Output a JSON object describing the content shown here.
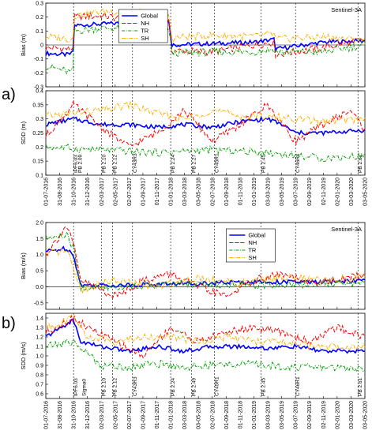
{
  "figure": {
    "panel_labels": [
      "a)",
      "b)"
    ],
    "dates": [
      "01-07-2016",
      "31-08-2016",
      "31-10-2016",
      "31-12-2016",
      "02-03-2017",
      "02-05-2017",
      "02-07-2017",
      "01-09-2017",
      "01-11-2017",
      "01-01-2018",
      "03-03-2018",
      "03-05-2018",
      "02-07-2018",
      "01-09-2018",
      "01-11-2018",
      "01-01-2019",
      "03-03-2019",
      "03-05-2019",
      "03-07-2019",
      "02-09-2019",
      "02-11-2019",
      "02-01-2020",
      "03-03-2020",
      "03-05-2020"
    ],
    "x_range": [
      "2016-07-01",
      "2020-05-03"
    ],
    "legend_entries": [
      "Global",
      "NH",
      "TR",
      "SH"
    ],
    "mission": "Sentinel-3A",
    "colors": {
      "Global": "#0000ff",
      "NH": "#ff0000",
      "TR": "#00a000",
      "SH": "#ffb000"
    }
  },
  "chart_data": [
    {
      "type": "line",
      "ylabel": "Bias (m)",
      "ylim": [
        -0.3,
        0.3
      ],
      "yticks": [
        "-0.3",
        "-0.2",
        "-0.1",
        "0",
        "0.1",
        "0.2",
        "0.3"
      ],
      "title_label": "Sentinel-3A",
      "legend": "inside",
      "annotations": [],
      "events": [
        "2016-10-31",
        "2018-01-01",
        "2018-07-01",
        "2019-03-15",
        "2019-07-20"
      ],
      "series": [
        {
          "name": "Global",
          "values": [
            [
              0,
              -0.06
            ],
            [
              3,
              -0.07
            ],
            [
              3.9,
              -0.06
            ],
            [
              4,
              0.14
            ],
            [
              8,
              0.15
            ],
            [
              12,
              0.16
            ],
            [
              17.9,
              0.17
            ],
            [
              18,
              0.0
            ],
            [
              24,
              0.01
            ],
            [
              30,
              0.02
            ],
            [
              32.9,
              0.04
            ],
            [
              33,
              -0.03
            ],
            [
              40,
              0.02
            ],
            [
              46,
              0.03
            ]
          ]
        },
        {
          "name": "NH",
          "values": [
            [
              0,
              -0.02
            ],
            [
              3.9,
              -0.03
            ],
            [
              4,
              0.2
            ],
            [
              8,
              0.21
            ],
            [
              12,
              0.18
            ],
            [
              17.9,
              0.16
            ],
            [
              18,
              -0.04
            ],
            [
              24,
              -0.05
            ],
            [
              30,
              0.0
            ],
            [
              32.9,
              0.02
            ],
            [
              33,
              -0.07
            ],
            [
              40,
              -0.02
            ],
            [
              46,
              0.04
            ]
          ]
        },
        {
          "name": "TR",
          "values": [
            [
              0,
              -0.15
            ],
            [
              3.9,
              -0.2
            ],
            [
              4,
              0.1
            ],
            [
              8,
              0.12
            ],
            [
              12,
              0.12
            ],
            [
              17.9,
              0.12
            ],
            [
              18,
              -0.06
            ],
            [
              24,
              -0.05
            ],
            [
              30,
              -0.05
            ],
            [
              32.9,
              -0.03
            ],
            [
              33,
              -0.05
            ],
            [
              40,
              -0.05
            ],
            [
              46,
              0.0
            ]
          ]
        },
        {
          "name": "SH",
          "values": [
            [
              0,
              0.06
            ],
            [
              3.9,
              0.04
            ],
            [
              4,
              0.21
            ],
            [
              8,
              0.24
            ],
            [
              12,
              0.24
            ],
            [
              17.9,
              0.2
            ],
            [
              18,
              0.05
            ],
            [
              24,
              0.07
            ],
            [
              30,
              0.06
            ],
            [
              32.9,
              0.08
            ],
            [
              33,
              0.04
            ],
            [
              40,
              0.06
            ],
            [
              46,
              0.03
            ]
          ]
        }
      ]
    },
    {
      "type": "line",
      "ylabel": "SDD (m)",
      "ylim": [
        0.1,
        0.4
      ],
      "yticks": [
        "0.1",
        "0.15",
        "0.2",
        "0.25",
        "0.3",
        "0.35",
        "0.4"
      ],
      "annotations": [
        "IPF6.03",
        "PB 2.09",
        "PB 2.10",
        "PB 2.12",
        "CY43R3",
        "PB 2.24",
        "PB 2.27",
        "CY45R1",
        "PB 2.45",
        "CY46R1",
        "PB 2.61"
      ],
      "annotation_months": [
        4,
        4.6,
        8,
        9.6,
        12.5,
        18,
        21,
        24.3,
        31,
        36,
        45
      ],
      "series": [
        {
          "name": "Global",
          "values": [
            [
              0,
              0.28
            ],
            [
              4,
              0.3
            ],
            [
              8,
              0.28
            ],
            [
              12,
              0.28
            ],
            [
              16,
              0.27
            ],
            [
              20,
              0.28
            ],
            [
              24,
              0.27
            ],
            [
              28,
              0.29
            ],
            [
              32,
              0.3
            ],
            [
              34,
              0.28
            ],
            [
              36,
              0.25
            ],
            [
              40,
              0.25
            ],
            [
              46,
              0.26
            ]
          ]
        },
        {
          "name": "NH",
          "values": [
            [
              0,
              0.24
            ],
            [
              4,
              0.35
            ],
            [
              8,
              0.27
            ],
            [
              12,
              0.2
            ],
            [
              16,
              0.25
            ],
            [
              20,
              0.33
            ],
            [
              24,
              0.22
            ],
            [
              28,
              0.28
            ],
            [
              32,
              0.35
            ],
            [
              36,
              0.22
            ],
            [
              40,
              0.28
            ],
            [
              44,
              0.33
            ],
            [
              46,
              0.26
            ]
          ]
        },
        {
          "name": "TR",
          "values": [
            [
              0,
              0.2
            ],
            [
              8,
              0.19
            ],
            [
              16,
              0.18
            ],
            [
              24,
              0.19
            ],
            [
              32,
              0.18
            ],
            [
              36,
              0.17
            ],
            [
              40,
              0.16
            ],
            [
              46,
              0.17
            ]
          ]
        },
        {
          "name": "SH",
          "values": [
            [
              0,
              0.31
            ],
            [
              8,
              0.33
            ],
            [
              12,
              0.35
            ],
            [
              16,
              0.32
            ],
            [
              20,
              0.3
            ],
            [
              24,
              0.33
            ],
            [
              28,
              0.31
            ],
            [
              32,
              0.31
            ],
            [
              36,
              0.3
            ],
            [
              40,
              0.29
            ],
            [
              46,
              0.3
            ]
          ]
        }
      ]
    },
    {
      "type": "line",
      "ylabel": "Bias (m/s)",
      "ylim": [
        -0.7,
        2.0
      ],
      "yticks": [
        "-0.5",
        "0.0",
        "0.5",
        "1.0",
        "1.5",
        "2.0"
      ],
      "title_label": "Sentinel-3A",
      "legend": "inside",
      "annotations": [],
      "series": [
        {
          "name": "Global",
          "values": [
            [
              0,
              1.1
            ],
            [
              3,
              1.2
            ],
            [
              4,
              1.0
            ],
            [
              5,
              0.05
            ],
            [
              10,
              0.05
            ],
            [
              20,
              0.1
            ],
            [
              30,
              0.15
            ],
            [
              40,
              0.15
            ],
            [
              46,
              0.2
            ]
          ]
        },
        {
          "name": "NH",
          "values": [
            [
              0,
              1.0
            ],
            [
              3,
              1.9
            ],
            [
              4,
              1.3
            ],
            [
              5,
              0.2
            ],
            [
              10,
              -0.3
            ],
            [
              14,
              0.2
            ],
            [
              18,
              0.4
            ],
            [
              22,
              0.0
            ],
            [
              26,
              -0.3
            ],
            [
              30,
              0.2
            ],
            [
              34,
              0.4
            ],
            [
              38,
              0.1
            ],
            [
              42,
              0.2
            ],
            [
              46,
              0.4
            ]
          ]
        },
        {
          "name": "TR",
          "values": [
            [
              0,
              1.5
            ],
            [
              3,
              1.6
            ],
            [
              4,
              1.2
            ],
            [
              5,
              -0.05
            ],
            [
              10,
              0.0
            ],
            [
              20,
              0.1
            ],
            [
              30,
              0.05
            ],
            [
              40,
              0.1
            ],
            [
              46,
              0.1
            ]
          ]
        },
        {
          "name": "SH",
          "values": [
            [
              0,
              1.0
            ],
            [
              3,
              1.1
            ],
            [
              4,
              0.6
            ],
            [
              5,
              -0.1
            ],
            [
              10,
              0.2
            ],
            [
              16,
              0.0
            ],
            [
              22,
              0.3
            ],
            [
              28,
              0.1
            ],
            [
              34,
              0.3
            ],
            [
              40,
              0.2
            ],
            [
              46,
              0.3
            ]
          ]
        }
      ]
    },
    {
      "type": "line",
      "ylabel": "SDD (m/s)",
      "ylim": [
        0.55,
        1.45
      ],
      "yticks": [
        "0.6",
        "0.7",
        "0.8",
        "0.9",
        "1.0",
        "1.1",
        "1.2",
        "1.3",
        "1.4"
      ],
      "annotations": [
        "IPF6.03",
        "Sigma0",
        "PB 2.10",
        "PB 2.12",
        "CY43R3",
        "PB 2.24",
        "PB 2.49",
        "CY45R1",
        "PB 2.45",
        "CY46R1",
        "PB 2.61"
      ],
      "annotation_months": [
        4,
        5.2,
        8,
        9.6,
        12.5,
        18,
        21,
        24.3,
        31,
        36,
        45
      ],
      "series": [
        {
          "name": "Global",
          "values": [
            [
              0,
              1.2
            ],
            [
              4,
              1.38
            ],
            [
              5,
              1.15
            ],
            [
              8,
              1.1
            ],
            [
              12,
              1.05
            ],
            [
              16,
              1.1
            ],
            [
              20,
              1.05
            ],
            [
              24,
              1.1
            ],
            [
              28,
              1.1
            ],
            [
              32,
              1.08
            ],
            [
              36,
              1.1
            ],
            [
              40,
              1.05
            ],
            [
              46,
              1.05
            ]
          ]
        },
        {
          "name": "NH",
          "values": [
            [
              0,
              1.25
            ],
            [
              4,
              1.4
            ],
            [
              6,
              1.3
            ],
            [
              10,
              1.15
            ],
            [
              14,
              1.0
            ],
            [
              18,
              1.3
            ],
            [
              22,
              1.15
            ],
            [
              26,
              1.25
            ],
            [
              30,
              1.3
            ],
            [
              34,
              1.25
            ],
            [
              38,
              1.15
            ],
            [
              42,
              1.3
            ],
            [
              46,
              1.2
            ]
          ]
        },
        {
          "name": "TR",
          "values": [
            [
              0,
              1.1
            ],
            [
              4,
              1.15
            ],
            [
              8,
              0.9
            ],
            [
              12,
              0.88
            ],
            [
              16,
              0.92
            ],
            [
              20,
              0.88
            ],
            [
              24,
              0.9
            ],
            [
              28,
              0.92
            ],
            [
              32,
              0.9
            ],
            [
              36,
              0.88
            ],
            [
              40,
              0.88
            ],
            [
              46,
              0.87
            ]
          ]
        },
        {
          "name": "SH",
          "values": [
            [
              0,
              1.3
            ],
            [
              4,
              1.4
            ],
            [
              6,
              1.2
            ],
            [
              10,
              1.15
            ],
            [
              14,
              1.2
            ],
            [
              18,
              1.2
            ],
            [
              22,
              1.15
            ],
            [
              26,
              1.2
            ],
            [
              30,
              1.15
            ],
            [
              34,
              1.15
            ],
            [
              38,
              1.1
            ],
            [
              42,
              1.1
            ],
            [
              46,
              1.1
            ]
          ]
        }
      ]
    }
  ]
}
